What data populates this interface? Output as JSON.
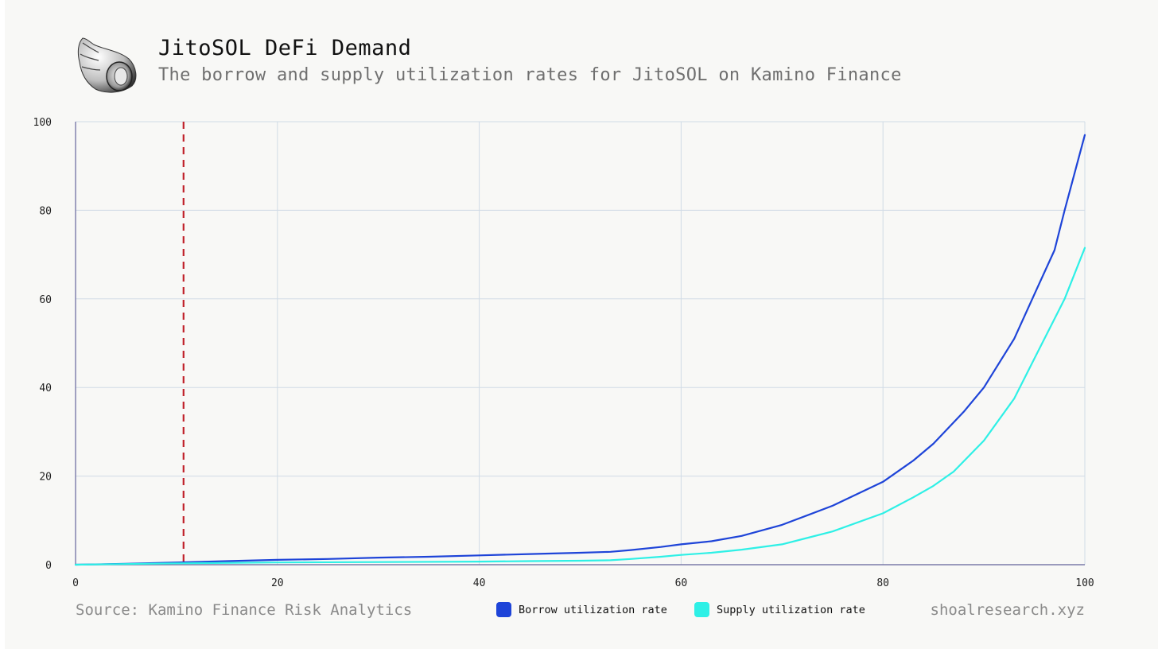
{
  "header": {
    "title": "JitoSOL DeFi Demand",
    "subtitle": "The borrow and supply utilization rates for JitoSOL on Kamino Finance",
    "logo_icon": "seashell-icon"
  },
  "footer": {
    "source": "Source: Kamino Finance Risk Analytics",
    "site": "shoalresearch.xyz"
  },
  "colors": {
    "background": "#f8f8f6",
    "grid": "#d0dbe6",
    "axis": "#7a7aa8",
    "borrow": "#1e44d8",
    "supply": "#2ef0e6",
    "marker": "#c0202a"
  },
  "chart_data": {
    "type": "line",
    "xlabel": "",
    "ylabel": "",
    "xlim": [
      0,
      100
    ],
    "ylim": [
      0,
      100
    ],
    "x_ticks": [
      0,
      20,
      40,
      60,
      80,
      100
    ],
    "y_ticks": [
      0,
      20,
      40,
      60,
      80,
      100
    ],
    "grid": true,
    "legend_position": "bottom",
    "reference_lines": [
      {
        "axis": "x",
        "value": 10.7,
        "style": "dashed"
      }
    ],
    "series": [
      {
        "name": "Borrow utilization rate",
        "color": "#1e44d8",
        "x": [
          0,
          5,
          10,
          15,
          20,
          25,
          30,
          35,
          40,
          45,
          50,
          53,
          55,
          58,
          60,
          63,
          66,
          70,
          75,
          80,
          83,
          85,
          88,
          90,
          93,
          95,
          97,
          98,
          100
        ],
        "y": [
          0,
          0.2,
          0.5,
          0.8,
          1.1,
          1.3,
          1.6,
          1.8,
          2.1,
          2.4,
          2.7,
          2.9,
          3.3,
          4.0,
          4.6,
          5.3,
          6.5,
          9.0,
          13.3,
          18.7,
          23.5,
          27.3,
          34.5,
          40.0,
          51.0,
          61.0,
          71.0,
          80.0,
          97.0
        ]
      },
      {
        "name": "Supply utilization rate",
        "color": "#2ef0e6",
        "x": [
          0,
          10,
          20,
          30,
          40,
          45,
          50,
          53,
          55,
          58,
          60,
          63,
          66,
          70,
          75,
          80,
          83,
          85,
          87,
          90,
          93,
          95,
          98,
          100
        ],
        "y": [
          0,
          0.3,
          0.5,
          0.6,
          0.7,
          0.8,
          0.9,
          1.0,
          1.3,
          1.8,
          2.2,
          2.7,
          3.4,
          4.6,
          7.5,
          11.6,
          15.2,
          17.8,
          21.0,
          28.0,
          37.5,
          46.5,
          60.0,
          71.5
        ]
      }
    ]
  }
}
